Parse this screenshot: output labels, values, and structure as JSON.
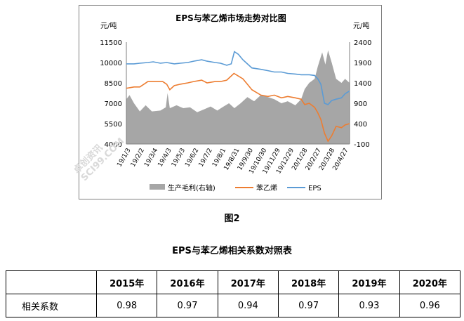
{
  "chart_data": {
    "type": "area",
    "title": "EPS与苯乙烯市场走势对比图",
    "left_unit": "元/吨",
    "right_unit": "元/吨",
    "y_left": {
      "min": 4000,
      "max": 11500,
      "ticks": [
        "4000",
        "5500",
        "7000",
        "8500",
        "10000",
        "11500"
      ]
    },
    "y_right": {
      "min": -100,
      "max": 2400,
      "ticks": [
        "-100",
        "400",
        "900",
        "1400",
        "1900",
        "2400"
      ]
    },
    "x_ticks": [
      "19/1/3",
      "19/2/2",
      "19/3/4",
      "19/4/3",
      "19/5/3",
      "19/6/2",
      "19/7/2",
      "19/8/1",
      "19/8/31",
      "19/9/30",
      "19/10/30",
      "19/11/29",
      "19/12/29",
      "20/1/28",
      "20/2/27",
      "20/3/28",
      "20/4/27"
    ],
    "x_range": [
      "2019-01-03",
      "2020-05-15"
    ],
    "series": [
      {
        "name": "生产毛利(右轴)",
        "axis": "right",
        "color": "#a6a6a6",
        "kind": "area",
        "points": [
          [
            "2019-01-03",
            1000
          ],
          [
            "2019-01-10",
            1100
          ],
          [
            "2019-01-20",
            900
          ],
          [
            "2019-02-02",
            700
          ],
          [
            "2019-02-15",
            850
          ],
          [
            "2019-03-01",
            700
          ],
          [
            "2019-03-20",
            720
          ],
          [
            "2019-04-01",
            800
          ],
          [
            "2019-04-05",
            1150
          ],
          [
            "2019-04-10",
            780
          ],
          [
            "2019-04-25",
            850
          ],
          [
            "2019-05-10",
            780
          ],
          [
            "2019-05-25",
            800
          ],
          [
            "2019-06-10",
            680
          ],
          [
            "2019-06-25",
            750
          ],
          [
            "2019-07-10",
            820
          ],
          [
            "2019-07-25",
            720
          ],
          [
            "2019-08-05",
            800
          ],
          [
            "2019-08-20",
            900
          ],
          [
            "2019-09-01",
            780
          ],
          [
            "2019-09-15",
            900
          ],
          [
            "2019-09-30",
            1050
          ],
          [
            "2019-10-15",
            950
          ],
          [
            "2019-10-30",
            1100
          ],
          [
            "2019-11-15",
            1050
          ],
          [
            "2019-11-29",
            1000
          ],
          [
            "2019-12-15",
            900
          ],
          [
            "2019-12-29",
            950
          ],
          [
            "2020-01-15",
            850
          ],
          [
            "2020-01-28",
            1000
          ],
          [
            "2020-02-05",
            1250
          ],
          [
            "2020-02-15",
            1400
          ],
          [
            "2020-02-27",
            1500
          ],
          [
            "2020-03-05",
            1800
          ],
          [
            "2020-03-15",
            2150
          ],
          [
            "2020-03-22",
            1850
          ],
          [
            "2020-03-28",
            2200
          ],
          [
            "2020-04-05",
            1900
          ],
          [
            "2020-04-15",
            1500
          ],
          [
            "2020-04-27",
            1400
          ],
          [
            "2020-05-05",
            1500
          ],
          [
            "2020-05-15",
            1400
          ]
        ]
      },
      {
        "name": "苯乙烯",
        "axis": "left",
        "color": "#ed7d31",
        "kind": "line",
        "points": [
          [
            "2019-01-03",
            8100
          ],
          [
            "2019-01-20",
            8200
          ],
          [
            "2019-02-02",
            8200
          ],
          [
            "2019-02-20",
            8600
          ],
          [
            "2019-03-04",
            8600
          ],
          [
            "2019-03-25",
            8600
          ],
          [
            "2019-04-03",
            8400
          ],
          [
            "2019-04-10",
            8000
          ],
          [
            "2019-04-20",
            8300
          ],
          [
            "2019-05-03",
            8400
          ],
          [
            "2019-05-20",
            8500
          ],
          [
            "2019-06-02",
            8600
          ],
          [
            "2019-06-20",
            8700
          ],
          [
            "2019-07-02",
            8500
          ],
          [
            "2019-07-20",
            8600
          ],
          [
            "2019-08-01",
            8600
          ],
          [
            "2019-08-15",
            8700
          ],
          [
            "2019-08-31",
            9200
          ],
          [
            "2019-09-10",
            9000
          ],
          [
            "2019-09-20",
            8800
          ],
          [
            "2019-09-30",
            8400
          ],
          [
            "2019-10-10",
            8000
          ],
          [
            "2019-10-30",
            7600
          ],
          [
            "2019-11-15",
            7500
          ],
          [
            "2019-11-29",
            7600
          ],
          [
            "2019-12-15",
            7400
          ],
          [
            "2019-12-29",
            7500
          ],
          [
            "2020-01-15",
            7400
          ],
          [
            "2020-01-28",
            7300
          ],
          [
            "2020-02-05",
            6900
          ],
          [
            "2020-02-15",
            7000
          ],
          [
            "2020-02-27",
            6700
          ],
          [
            "2020-03-05",
            6300
          ],
          [
            "2020-03-12",
            5800
          ],
          [
            "2020-03-20",
            4800
          ],
          [
            "2020-03-28",
            4200
          ],
          [
            "2020-04-05",
            4600
          ],
          [
            "2020-04-15",
            5300
          ],
          [
            "2020-04-27",
            5200
          ],
          [
            "2020-05-05",
            5400
          ],
          [
            "2020-05-15",
            5500
          ]
        ]
      },
      {
        "name": "EPS",
        "axis": "left",
        "color": "#5b9bd5",
        "kind": "line",
        "points": [
          [
            "2019-01-03",
            9900
          ],
          [
            "2019-01-20",
            9900
          ],
          [
            "2019-02-02",
            9950
          ],
          [
            "2019-02-20",
            10000
          ],
          [
            "2019-03-04",
            10050
          ],
          [
            "2019-03-20",
            9950
          ],
          [
            "2019-04-03",
            10000
          ],
          [
            "2019-04-20",
            9900
          ],
          [
            "2019-05-03",
            9950
          ],
          [
            "2019-05-20",
            10000
          ],
          [
            "2019-06-02",
            10100
          ],
          [
            "2019-06-20",
            10200
          ],
          [
            "2019-07-02",
            10100
          ],
          [
            "2019-07-20",
            10000
          ],
          [
            "2019-08-01",
            9950
          ],
          [
            "2019-08-15",
            9800
          ],
          [
            "2019-08-25",
            9900
          ],
          [
            "2019-09-01",
            10800
          ],
          [
            "2019-09-10",
            10600
          ],
          [
            "2019-09-20",
            10200
          ],
          [
            "2019-09-30",
            9900
          ],
          [
            "2019-10-10",
            9600
          ],
          [
            "2019-10-30",
            9500
          ],
          [
            "2019-11-15",
            9400
          ],
          [
            "2019-11-29",
            9300
          ],
          [
            "2019-12-15",
            9300
          ],
          [
            "2019-12-29",
            9200
          ],
          [
            "2020-01-15",
            9150
          ],
          [
            "2020-01-28",
            9100
          ],
          [
            "2020-02-15",
            9100
          ],
          [
            "2020-02-27",
            9050
          ],
          [
            "2020-03-05",
            8800
          ],
          [
            "2020-03-12",
            8400
          ],
          [
            "2020-03-20",
            7000
          ],
          [
            "2020-03-28",
            6900
          ],
          [
            "2020-04-05",
            7200
          ],
          [
            "2020-04-15",
            7300
          ],
          [
            "2020-04-27",
            7400
          ],
          [
            "2020-05-05",
            7700
          ],
          [
            "2020-05-15",
            7900
          ]
        ]
      }
    ]
  },
  "figure_caption": "图2",
  "table": {
    "title": "EPS与苯乙烯相关系数对照表",
    "header": [
      "",
      "2015年",
      "2016年",
      "2017年",
      "2018年",
      "2019年",
      "2020年"
    ],
    "row_label": "相关系数",
    "values": [
      "0.98",
      "0.97",
      "0.94",
      "0.97",
      "0.93",
      "0.96"
    ]
  },
  "watermark": "卓创资讯 SCI99.COM"
}
